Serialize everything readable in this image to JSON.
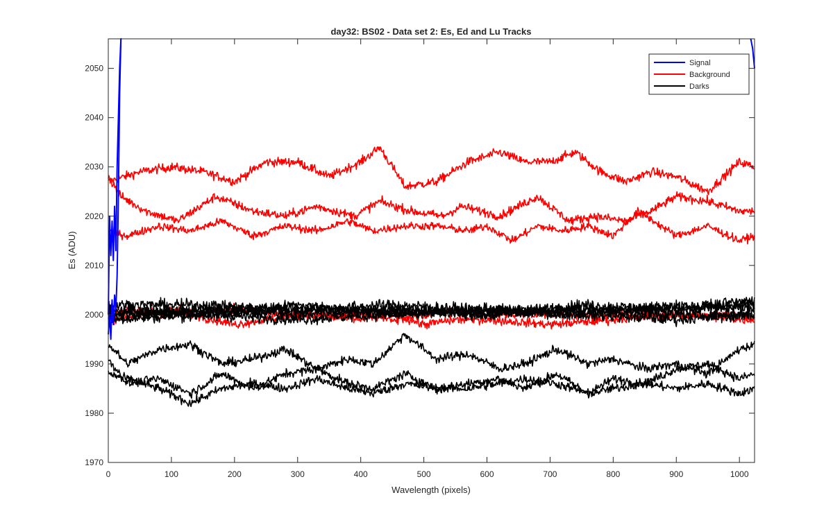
{
  "chart_data": {
    "type": "line",
    "title": "day32: BS02 - Data set 2: Es, Ed and Lu Tracks",
    "xlabel": "Wavelength (pixels)",
    "ylabel": "Es (ADU)",
    "xlim": [
      0,
      1024
    ],
    "ylim": [
      1970,
      2056
    ],
    "xticks": [
      0,
      100,
      200,
      300,
      400,
      500,
      600,
      700,
      800,
      900,
      1000
    ],
    "yticks": [
      1970,
      1980,
      1990,
      2000,
      2010,
      2020,
      2030,
      2040,
      2050
    ],
    "grid": false,
    "legend": {
      "placement": "top-right",
      "entries": [
        {
          "label": "Signal",
          "color": "#0000ff"
        },
        {
          "label": "Background",
          "color": "#ff0000"
        },
        {
          "label": "Darks",
          "color": "#000000"
        }
      ]
    },
    "colors": {
      "signal": "#0000ff",
      "background": "#ff0000",
      "darks": "#000000"
    },
    "noise": {
      "background_upper": 0.9,
      "background_mid": 0.9,
      "background_low": 0.8,
      "background_near_2000": 0.9,
      "darks_near_2000": 1.1,
      "darks_low": 0.9
    },
    "series": [
      {
        "name": "Signal",
        "group": "signal",
        "x": [
          0,
          2,
          4,
          6,
          8,
          10,
          12,
          14,
          16,
          18,
          20,
          21
        ],
        "y": [
          2000,
          2020,
          2012,
          2019,
          2011,
          2022,
          2013,
          2030,
          2040,
          2050,
          2056,
          2056
        ]
      },
      {
        "name": "Signal",
        "group": "signal",
        "x": [
          0,
          2,
          4,
          6,
          8,
          10,
          12,
          14,
          16,
          18,
          20
        ],
        "y": [
          1996,
          2000,
          1995,
          2003,
          1998,
          2004,
          2001,
          2008,
          2024,
          2045,
          2056
        ]
      },
      {
        "name": "Signal",
        "group": "signal",
        "x": [
          1018,
          1021,
          1024
        ],
        "y": [
          2056,
          2054,
          2050
        ]
      },
      {
        "name": "Background",
        "group": "background_upper",
        "x": [
          0,
          50,
          100,
          150,
          200,
          250,
          300,
          350,
          400,
          430,
          470,
          520,
          570,
          620,
          660,
          700,
          740,
          780,
          820,
          860,
          900,
          950,
          1000,
          1024
        ],
        "y": [
          2027,
          2029,
          2030,
          2029,
          2027,
          2031,
          2031,
          2028,
          2031,
          2034,
          2026,
          2027,
          2031,
          2033,
          2031,
          2031,
          2033,
          2029,
          2027,
          2029,
          2028,
          2025,
          2031,
          2030
        ]
      },
      {
        "name": "Background",
        "group": "background_mid",
        "x": [
          0,
          20,
          60,
          110,
          170,
          230,
          280,
          330,
          390,
          430,
          480,
          530,
          560,
          620,
          680,
          730,
          770,
          820,
          860,
          900,
          950,
          1000,
          1024
        ],
        "y": [
          2028,
          2024,
          2021,
          2019,
          2024,
          2021,
          2020,
          2022,
          2020,
          2023,
          2021,
          2020,
          2022,
          2020,
          2024,
          2019,
          2020,
          2019,
          2021,
          2024,
          2023,
          2021,
          2021
        ]
      },
      {
        "name": "Background",
        "group": "background_low",
        "x": [
          0,
          30,
          80,
          130,
          180,
          230,
          280,
          330,
          380,
          420,
          470,
          520,
          570,
          600,
          640,
          680,
          720,
          760,
          800,
          840,
          900,
          950,
          1000,
          1024
        ],
        "y": [
          2017,
          2016,
          2018,
          2017,
          2019,
          2016,
          2018,
          2017,
          2019,
          2017,
          2018,
          2018,
          2017,
          2018,
          2015,
          2018,
          2017,
          2018,
          2016,
          2021,
          2016,
          2018,
          2015,
          2016
        ]
      },
      {
        "name": "Background",
        "group": "background_near_2000",
        "x": [
          0,
          100,
          200,
          300,
          400,
          450,
          500,
          550,
          600,
          700,
          800,
          900,
          1000,
          1024
        ],
        "y": [
          2001,
          2000,
          2001,
          2000,
          2000,
          1999,
          2000,
          2001,
          2000,
          2000,
          2000,
          2000,
          2000,
          1999
        ]
      },
      {
        "name": "Background",
        "group": "background_near_2000",
        "x": [
          0,
          100,
          200,
          300,
          400,
          450,
          500,
          550,
          600,
          700,
          800,
          900,
          1000,
          1024
        ],
        "y": [
          1999,
          2001,
          1998,
          2000,
          1999,
          2000,
          1998,
          1999,
          1999,
          1998,
          1999,
          2000,
          1999,
          1999
        ]
      },
      {
        "name": "Darks",
        "group": "darks_near_2000",
        "x": [
          0,
          150,
          300,
          450,
          600,
          750,
          900,
          1024
        ],
        "y": [
          2002,
          2002,
          2001,
          2002,
          2001,
          2001,
          2001,
          2003
        ]
      },
      {
        "name": "Darks",
        "group": "darks_near_2000",
        "x": [
          0,
          150,
          300,
          450,
          600,
          750,
          900,
          1024
        ],
        "y": [
          2000,
          2001,
          2001,
          2001,
          2000,
          2002,
          2001,
          2002
        ]
      },
      {
        "name": "Darks",
        "group": "darks_near_2000",
        "x": [
          0,
          150,
          300,
          450,
          600,
          750,
          900,
          1024
        ],
        "y": [
          2001,
          2000,
          2002,
          2000,
          2001,
          2000,
          2002,
          2001
        ]
      },
      {
        "name": "Darks",
        "group": "darks_near_2000",
        "x": [
          0,
          150,
          300,
          450,
          600,
          750,
          900,
          1024
        ],
        "y": [
          2000,
          2001,
          2000,
          2001,
          2000,
          2001,
          2000,
          2000
        ]
      },
      {
        "name": "Darks",
        "group": "darks_near_2000",
        "x": [
          0,
          150,
          300,
          450,
          600,
          750,
          900,
          1024
        ],
        "y": [
          1999,
          2000,
          1999,
          2000,
          2001,
          2000,
          1999,
          2000
        ]
      },
      {
        "name": "Darks",
        "group": "darks_low",
        "x": [
          0,
          30,
          80,
          130,
          180,
          230,
          280,
          330,
          380,
          420,
          470,
          520,
          570,
          620,
          660,
          710,
          760,
          800,
          850,
          900,
          950,
          1000,
          1024
        ],
        "y": [
          1994,
          1990,
          1993,
          1994,
          1990,
          1991,
          1993,
          1989,
          1991,
          1990,
          1996,
          1991,
          1992,
          1989,
          1990,
          1993,
          1990,
          1991,
          1989,
          1990,
          1988,
          1993,
          1994
        ]
      },
      {
        "name": "Darks",
        "group": "darks_low",
        "x": [
          0,
          30,
          80,
          130,
          180,
          230,
          280,
          330,
          380,
          420,
          470,
          520,
          570,
          620,
          660,
          710,
          760,
          800,
          850,
          900,
          950,
          1000,
          1024
        ],
        "y": [
          1991,
          1986,
          1987,
          1984,
          1988,
          1985,
          1988,
          1989,
          1986,
          1985,
          1988,
          1985,
          1986,
          1987,
          1985,
          1988,
          1984,
          1987,
          1986,
          1989,
          1990,
          1987,
          1988
        ]
      },
      {
        "name": "Darks",
        "group": "darks_low",
        "x": [
          0,
          30,
          80,
          130,
          180,
          230,
          280,
          330,
          380,
          420,
          470,
          520,
          570,
          620,
          660,
          710,
          760,
          800,
          850,
          900,
          950,
          1000,
          1024
        ],
        "y": [
          1988,
          1987,
          1985,
          1982,
          1985,
          1986,
          1985,
          1987,
          1985,
          1984,
          1986,
          1985,
          1985,
          1986,
          1987,
          1986,
          1984,
          1985,
          1986,
          1985,
          1986,
          1984,
          1985
        ]
      }
    ]
  }
}
